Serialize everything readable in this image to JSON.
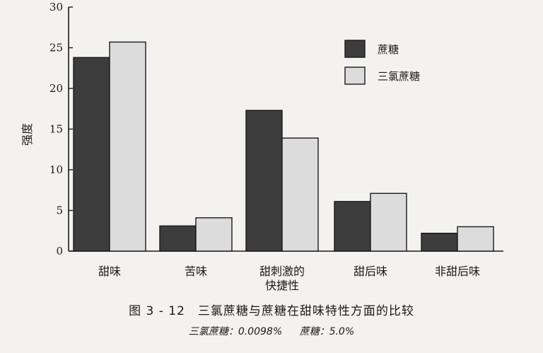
{
  "chart_data": {
    "type": "bar",
    "categories": [
      "甜味",
      "苦味",
      "甜刺激的\n快捷性",
      "甜后味",
      "非甜后味"
    ],
    "series": [
      {
        "name": "蔗糖",
        "values": [
          23.8,
          3.1,
          17.3,
          6.1,
          2.2
        ],
        "color": "#3d3d3d"
      },
      {
        "name": "三氯蔗糖",
        "values": [
          25.7,
          4.1,
          13.9,
          7.1,
          3.0
        ],
        "color": "#dcdcdc"
      }
    ],
    "ylabel": "强度",
    "xlabel": "",
    "ylim": [
      0,
      30
    ],
    "yticks": [
      0,
      5,
      10,
      15,
      20,
      25,
      30
    ],
    "grid": false,
    "legend": "top-right"
  },
  "caption": "图 3 - 12　三氯蔗糖与蔗糖在甜味特性方面的比较",
  "note": {
    "sucralose": "三氯蔗糖：0.0098%",
    "sucrose": "蔗糖：5.0%"
  }
}
